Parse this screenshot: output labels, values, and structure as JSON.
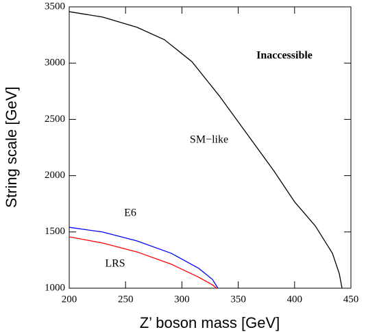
{
  "chart_data": {
    "type": "line",
    "x_label": "Z’ boson mass [GeV]",
    "y_label": "String scale [GeV]",
    "annotations": [
      "Inaccessible",
      "SM−like",
      "E6",
      "LRS"
    ],
    "xlim": [
      200,
      450
    ],
    "xticks": [
      200,
      250,
      300,
      350,
      400,
      450
    ],
    "ylim": [
      1000,
      3500
    ],
    "yticks": [
      1000,
      1500,
      2000,
      2500,
      3000,
      3500
    ],
    "grid": false,
    "series": [
      {
        "color": "#000000",
        "x": [
          200,
          229.8,
          260.2,
          284.5,
          308.9,
          333.2,
          357.5,
          381.8,
          400.1,
          418.4,
          433.6,
          439.7,
          442.1
        ],
        "values": [
          3457,
          3409,
          3318,
          3208,
          3013,
          2709,
          2375,
          2040,
          1766,
          1553,
          1310,
          1128,
          1000
        ]
      },
      {
        "color": "#0000ff",
        "x": [
          200,
          229.8,
          260.2,
          290.6,
          315,
          327,
          332
        ],
        "values": [
          1541,
          1499,
          1420,
          1310,
          1176,
          1079,
          1000
        ]
      },
      {
        "color": "#ff0000",
        "x": [
          200,
          229.8,
          260.2,
          290.6,
          315,
          327,
          330.8
        ],
        "values": [
          1456,
          1401,
          1322,
          1213,
          1097,
          1030,
          1000
        ]
      }
    ]
  }
}
